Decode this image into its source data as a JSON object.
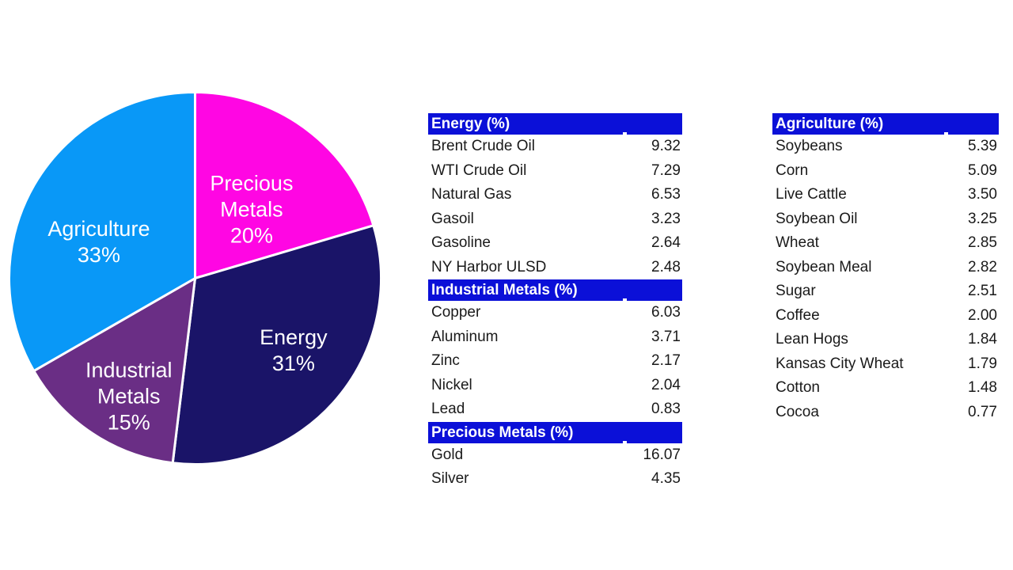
{
  "colors": {
    "background": "#ffffff",
    "header_bar": "#0B10D8",
    "header_text": "#ffffff",
    "table_text": "#1a1a1a",
    "pie_label_text": "#ffffff",
    "pie_separator": "#ffffff"
  },
  "chart_data": {
    "type": "pie",
    "title": "",
    "legend": "none",
    "start": "12-oclock, clockwise",
    "slices": [
      {
        "name": "Precious Metals",
        "percent_shown": "20%",
        "value": 20.42,
        "color": "#FF06E3",
        "label_lines": [
          "Precious",
          "Metals",
          "20%"
        ]
      },
      {
        "name": "Energy",
        "percent_shown": "31%",
        "value": 31.49,
        "color": "#1A1468",
        "label_lines": [
          "Energy",
          "31%"
        ]
      },
      {
        "name": "Industrial Metals",
        "percent_shown": "15%",
        "value": 14.78,
        "color": "#6A2E85",
        "label_lines": [
          "Industrial",
          "Metals",
          "15%"
        ]
      },
      {
        "name": "Agriculture",
        "percent_shown": "33%",
        "value": 33.29,
        "color": "#0998F7",
        "label_lines": [
          "Agriculture",
          "33%"
        ]
      }
    ]
  },
  "tables": [
    {
      "sections": [
        {
          "title": "Energy (%)",
          "rows": [
            {
              "label": "Brent Crude Oil",
              "value": "9.32"
            },
            {
              "label": "WTI Crude Oil",
              "value": "7.29"
            },
            {
              "label": "Natural Gas",
              "value": "6.53"
            },
            {
              "label": "Gasoil",
              "value": "3.23"
            },
            {
              "label": "Gasoline",
              "value": "2.64"
            },
            {
              "label": "NY Harbor ULSD",
              "value": "2.48"
            }
          ]
        },
        {
          "title": "Industrial Metals (%)",
          "rows": [
            {
              "label": "Copper",
              "value": "6.03"
            },
            {
              "label": "Aluminum",
              "value": "3.71"
            },
            {
              "label": "Zinc",
              "value": "2.17"
            },
            {
              "label": "Nickel",
              "value": "2.04"
            },
            {
              "label": "Lead",
              "value": "0.83"
            }
          ]
        },
        {
          "title": "Precious Metals (%)",
          "rows": [
            {
              "label": "Gold",
              "value": "16.07"
            },
            {
              "label": "Silver",
              "value": "4.35"
            }
          ]
        }
      ]
    },
    {
      "sections": [
        {
          "title": "Agriculture (%)",
          "rows": [
            {
              "label": "Soybeans",
              "value": "5.39"
            },
            {
              "label": "Corn",
              "value": "5.09"
            },
            {
              "label": "Live Cattle",
              "value": "3.50"
            },
            {
              "label": "Soybean Oil",
              "value": "3.25"
            },
            {
              "label": "Wheat",
              "value": "2.85"
            },
            {
              "label": "Soybean Meal",
              "value": "2.82"
            },
            {
              "label": "Sugar",
              "value": "2.51"
            },
            {
              "label": "Coffee",
              "value": "2.00"
            },
            {
              "label": "Lean Hogs",
              "value": "1.84"
            },
            {
              "label": "Kansas City Wheat",
              "value": "1.79"
            },
            {
              "label": "Cotton",
              "value": "1.48"
            },
            {
              "label": "Cocoa",
              "value": "0.77"
            }
          ]
        }
      ]
    }
  ]
}
